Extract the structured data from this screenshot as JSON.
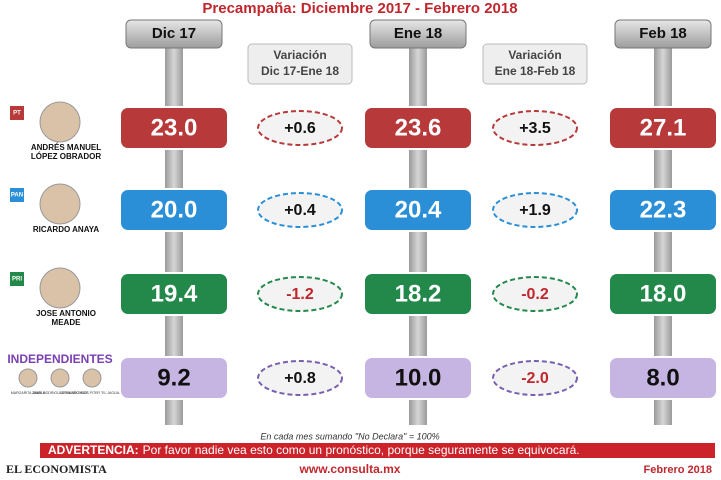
{
  "header": {
    "title": "Precampaña: Diciembre 2017 - Febrero 2018"
  },
  "columns": [
    {
      "lines": [
        "Dic 17"
      ]
    },
    {
      "lines": [
        "Variación",
        "Dic 17-Ene 18"
      ]
    },
    {
      "lines": [
        "Ene 18"
      ]
    },
    {
      "lines": [
        "Variación",
        "Ene 18-Feb 18"
      ]
    },
    {
      "lines": [
        "Feb 18"
      ]
    }
  ],
  "rows": [
    {
      "party": "PT",
      "name_lines": [
        "ANDRÉS MANUEL",
        "LÓPEZ OBRADOR"
      ],
      "color": "#b8393a",
      "cells": [
        "23.0",
        "+0.6",
        "23.6",
        "+3.5",
        "27.1"
      ]
    },
    {
      "party": "PAN",
      "name_lines": [
        "RICARDO ANAYA"
      ],
      "color": "#2b8fd8",
      "cells": [
        "20.0",
        "+0.4",
        "20.4",
        "+1.9",
        "22.3"
      ]
    },
    {
      "party": "PRI",
      "name_lines": [
        "JOSE ANTONIO",
        "MEADE"
      ],
      "color": "#23894a",
      "cells": [
        "19.4",
        "-1.2",
        "18.2",
        "-0.2",
        "18.0"
      ]
    },
    {
      "party": null,
      "name_lines": [
        "INDEPENDIENTES"
      ],
      "sub_names": [
        "MARGARITA ZAVALA",
        "JAIME RODRIGUEZ \"EL BRONCO\"",
        "ARMANDO RIOS PITER \"EL JAGUAR\""
      ],
      "color": "#c6b5e2",
      "cells": [
        "9.2",
        "+0.8",
        "10.0",
        "-2.0",
        "8.0"
      ]
    }
  ],
  "footer": {
    "note": "En cada mes sumando \"No Declara\" = 100%",
    "warning_label": "ADVERTENCIA:",
    "warning_text": "Por favor nadie vea esto como un pronóstico, porque seguramente se equivocará.",
    "brand": "EL ECONOMISTA",
    "url": "www.consulta.mx",
    "date": "Febrero 2018"
  }
}
